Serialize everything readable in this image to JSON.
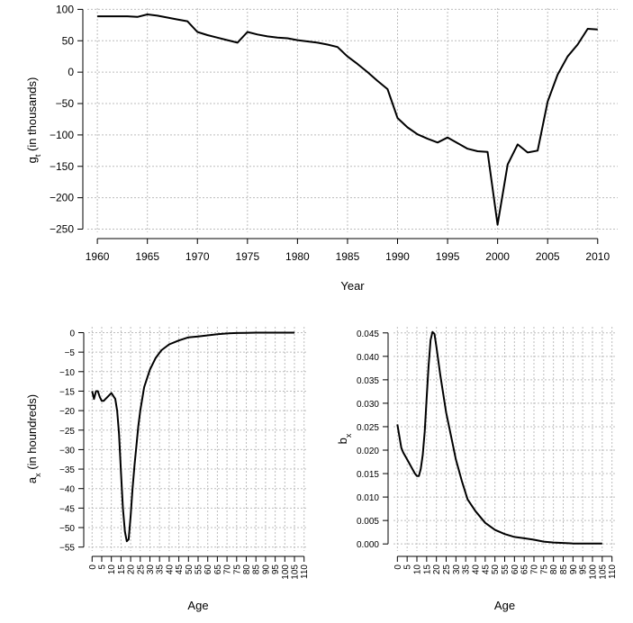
{
  "chart_data": [
    {
      "type": "line",
      "xlabel": "Year",
      "ylabel": "gt (in thousands)",
      "ylabel_main": "g",
      "ylabel_sub": "t",
      "ylabel_rest": " (in thousands)",
      "xlim": [
        1959,
        2012
      ],
      "ylim": [
        -255,
        102
      ],
      "xticks": [
        1960,
        1965,
        1970,
        1975,
        1980,
        1985,
        1990,
        1995,
        2000,
        2005,
        2010
      ],
      "yticks": [
        100,
        50,
        0,
        -50,
        -100,
        -150,
        -200,
        -250
      ],
      "ytick_labels": [
        "100",
        "50",
        "0",
        "−50",
        "−100",
        "−150",
        "−200",
        "−250"
      ],
      "grid": true,
      "x": [
        1960,
        1961,
        1962,
        1963,
        1964,
        1965,
        1966,
        1967,
        1968,
        1969,
        1970,
        1971,
        1972,
        1973,
        1974,
        1975,
        1976,
        1977,
        1978,
        1979,
        1980,
        1981,
        1982,
        1983,
        1984,
        1985,
        1986,
        1987,
        1988,
        1989,
        1990,
        1991,
        1992,
        1993,
        1994,
        1995,
        1996,
        1997,
        1998,
        1999,
        2000,
        2001,
        2002,
        2003,
        2004,
        2005,
        2006,
        2007,
        2008,
        2009,
        2010
      ],
      "y": [
        89,
        89,
        89,
        89,
        88,
        92,
        90,
        87,
        84,
        81,
        64,
        59,
        55,
        51,
        47,
        64,
        60,
        57,
        55,
        54,
        51,
        49,
        47,
        44,
        40,
        25,
        13,
        0,
        -14,
        -27,
        -73,
        -88,
        -99,
        -106,
        -112,
        -104,
        -113,
        -122,
        -126,
        -127,
        -243,
        -147,
        -115,
        -128,
        -125,
        -47,
        -4,
        25,
        44,
        69,
        68
      ]
    },
    {
      "type": "line",
      "xlabel": "Age",
      "ylabel": "ax (in houndreds)",
      "ylabel_main": "a",
      "ylabel_sub": "x",
      "ylabel_rest": " (in houndreds)",
      "xlim": [
        -2,
        112
      ],
      "ylim": [
        -56,
        1.5
      ],
      "xticks": [
        0,
        5,
        10,
        15,
        20,
        25,
        30,
        35,
        40,
        45,
        50,
        55,
        60,
        65,
        70,
        75,
        80,
        85,
        90,
        95,
        100,
        105,
        110
      ],
      "yticks": [
        0,
        -5,
        -10,
        -15,
        -20,
        -25,
        -30,
        -35,
        -40,
        -45,
        -50,
        -55
      ],
      "ytick_labels": [
        "0",
        "−5",
        "−10",
        "−15",
        "−20",
        "−25",
        "−30",
        "−35",
        "−40",
        "−45",
        "−50",
        "−55"
      ],
      "grid": true,
      "x": [
        0,
        1,
        2,
        3,
        4,
        5,
        6,
        7,
        8,
        10,
        12,
        13,
        14,
        15,
        16,
        17,
        18,
        19,
        20,
        21,
        22,
        23,
        24,
        25,
        27,
        30,
        33,
        36,
        40,
        45,
        50,
        55,
        60,
        65,
        70,
        75,
        80,
        85,
        90,
        95,
        100,
        105
      ],
      "y": [
        -15,
        -17,
        -15,
        -15,
        -16.5,
        -17.5,
        -17.5,
        -17,
        -16.5,
        -15.5,
        -17,
        -20,
        -26,
        -36,
        -45,
        -51,
        -53.5,
        -53,
        -47,
        -40,
        -34,
        -29,
        -24,
        -20,
        -14,
        -9.5,
        -6.5,
        -4.5,
        -3,
        -2,
        -1.2,
        -1,
        -0.7,
        -0.4,
        -0.2,
        -0.1,
        -0.05,
        0,
        0,
        0,
        0,
        0
      ]
    },
    {
      "type": "line",
      "xlabel": "Age",
      "ylabel": "bx",
      "ylabel_main": "b",
      "ylabel_sub": "x",
      "ylabel_rest": "",
      "xlim": [
        -2,
        112
      ],
      "ylim": [
        -0.0015,
        0.0463
      ],
      "xticks": [
        0,
        5,
        10,
        15,
        20,
        25,
        30,
        35,
        40,
        45,
        50,
        55,
        60,
        65,
        70,
        75,
        80,
        85,
        90,
        95,
        100,
        105,
        110
      ],
      "yticks": [
        0.045,
        0.04,
        0.035,
        0.03,
        0.025,
        0.02,
        0.015,
        0.01,
        0.005,
        0.0
      ],
      "ytick_labels": [
        "0.045",
        "0.040",
        "0.035",
        "0.030",
        "0.025",
        "0.020",
        "0.015",
        "0.010",
        "0.005",
        "0.000"
      ],
      "grid": true,
      "x": [
        0,
        1,
        2,
        3,
        5,
        7,
        9,
        10,
        11,
        12,
        13,
        14,
        15,
        16,
        17,
        18,
        19,
        20,
        22,
        25,
        28,
        30,
        33,
        36,
        40,
        45,
        50,
        55,
        60,
        65,
        70,
        75,
        80,
        85,
        90,
        95,
        100,
        105
      ],
      "y": [
        0.0255,
        0.023,
        0.0205,
        0.0195,
        0.018,
        0.0165,
        0.015,
        0.0145,
        0.0145,
        0.016,
        0.019,
        0.024,
        0.031,
        0.038,
        0.0435,
        0.0452,
        0.0448,
        0.042,
        0.036,
        0.028,
        0.022,
        0.018,
        0.0135,
        0.0095,
        0.007,
        0.0045,
        0.003,
        0.0021,
        0.0015,
        0.0012,
        0.0009,
        0.0005,
        0.0003,
        0.0002,
        0.0001,
        0.0001,
        0.0001,
        0.0001
      ]
    }
  ]
}
